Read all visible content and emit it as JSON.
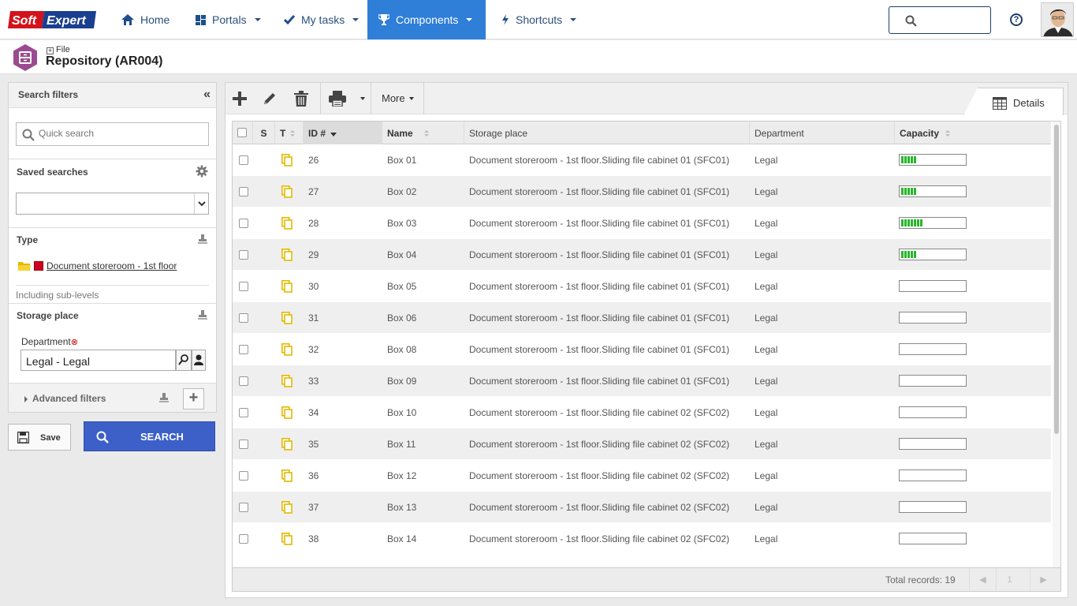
{
  "brand": {
    "logo_text": "SoftExpert",
    "colors": {
      "logo_red": "#d4121b",
      "logo_blue": "#1a3f8f",
      "accent": "#2f7ed8",
      "search_button": "#3c5fc8"
    }
  },
  "nav": {
    "home": {
      "label": "Home",
      "icon": "home-icon"
    },
    "portals": {
      "label": "Portals",
      "icon": "grid-icon"
    },
    "my_tasks": {
      "label": "My tasks",
      "icon": "check-icon"
    },
    "components": {
      "label": "Components",
      "icon": "trophy-icon",
      "active": true
    },
    "shortcuts": {
      "label": "Shortcuts",
      "icon": "lightning-icon"
    },
    "search_placeholder": "",
    "help": "?"
  },
  "page": {
    "breadcrumb": "File",
    "title": "Repository (AR004)"
  },
  "filters": {
    "title": "Search filters",
    "collapse": "«",
    "quick_search_placeholder": "Quick search",
    "saved_searches_label": "Saved searches",
    "saved_search_value": "",
    "type_label": "Type",
    "type_value": "Document storeroom - 1st floor",
    "including_sublevels": "Including sub-levels",
    "storage_place_label": "Storage place",
    "department_label": "Department",
    "department_value": "Legal - Legal",
    "advanced_filters_label": "Advanced filters",
    "add": "+",
    "save_label": "Save",
    "search_label": "SEARCH"
  },
  "toolbar": {
    "more_label": "More",
    "details_tab": "Details"
  },
  "grid": {
    "columns": {
      "s": "S",
      "t": "T",
      "id": "ID #",
      "name": "Name",
      "storage": "Storage place",
      "department": "Department",
      "capacity": "Capacity"
    },
    "rows": [
      {
        "id": "26",
        "name": "Box 01",
        "storage": "Document storeroom - 1st floor.Sliding file cabinet 01 (SFC01)",
        "department": "Legal",
        "capacity": 0.25
      },
      {
        "id": "27",
        "name": "Box 02",
        "storage": "Document storeroom - 1st floor.Sliding file cabinet 01 (SFC01)",
        "department": "Legal",
        "capacity": 0.25
      },
      {
        "id": "28",
        "name": "Box 03",
        "storage": "Document storeroom - 1st floor.Sliding file cabinet 01 (SFC01)",
        "department": "Legal",
        "capacity": 0.35
      },
      {
        "id": "29",
        "name": "Box 04",
        "storage": "Document storeroom - 1st floor.Sliding file cabinet 01 (SFC01)",
        "department": "Legal",
        "capacity": 0.25
      },
      {
        "id": "30",
        "name": "Box 05",
        "storage": "Document storeroom - 1st floor.Sliding file cabinet 01 (SFC01)",
        "department": "Legal",
        "capacity": 0
      },
      {
        "id": "31",
        "name": "Box 06",
        "storage": "Document storeroom - 1st floor.Sliding file cabinet 01 (SFC01)",
        "department": "Legal",
        "capacity": 0
      },
      {
        "id": "32",
        "name": "Box 08",
        "storage": "Document storeroom - 1st floor.Sliding file cabinet 01 (SFC01)",
        "department": "Legal",
        "capacity": 0
      },
      {
        "id": "33",
        "name": "Box 09",
        "storage": "Document storeroom - 1st floor.Sliding file cabinet 01 (SFC01)",
        "department": "Legal",
        "capacity": 0
      },
      {
        "id": "34",
        "name": "Box 10",
        "storage": "Document storeroom - 1st floor.Sliding file cabinet 02 (SFC02)",
        "department": "Legal",
        "capacity": 0
      },
      {
        "id": "35",
        "name": "Box 11",
        "storage": "Document storeroom - 1st floor.Sliding file cabinet 02 (SFC02)",
        "department": "Legal",
        "capacity": 0
      },
      {
        "id": "36",
        "name": "Box 12",
        "storage": "Document storeroom - 1st floor.Sliding file cabinet 02 (SFC02)",
        "department": "Legal",
        "capacity": 0
      },
      {
        "id": "37",
        "name": "Box 13",
        "storage": "Document storeroom - 1st floor.Sliding file cabinet 02 (SFC02)",
        "department": "Legal",
        "capacity": 0
      },
      {
        "id": "38",
        "name": "Box 14",
        "storage": "Document storeroom - 1st floor.Sliding file cabinet 02 (SFC02)",
        "department": "Legal",
        "capacity": 0
      }
    ],
    "total_records": "Total records: 19",
    "page_number": "1"
  }
}
